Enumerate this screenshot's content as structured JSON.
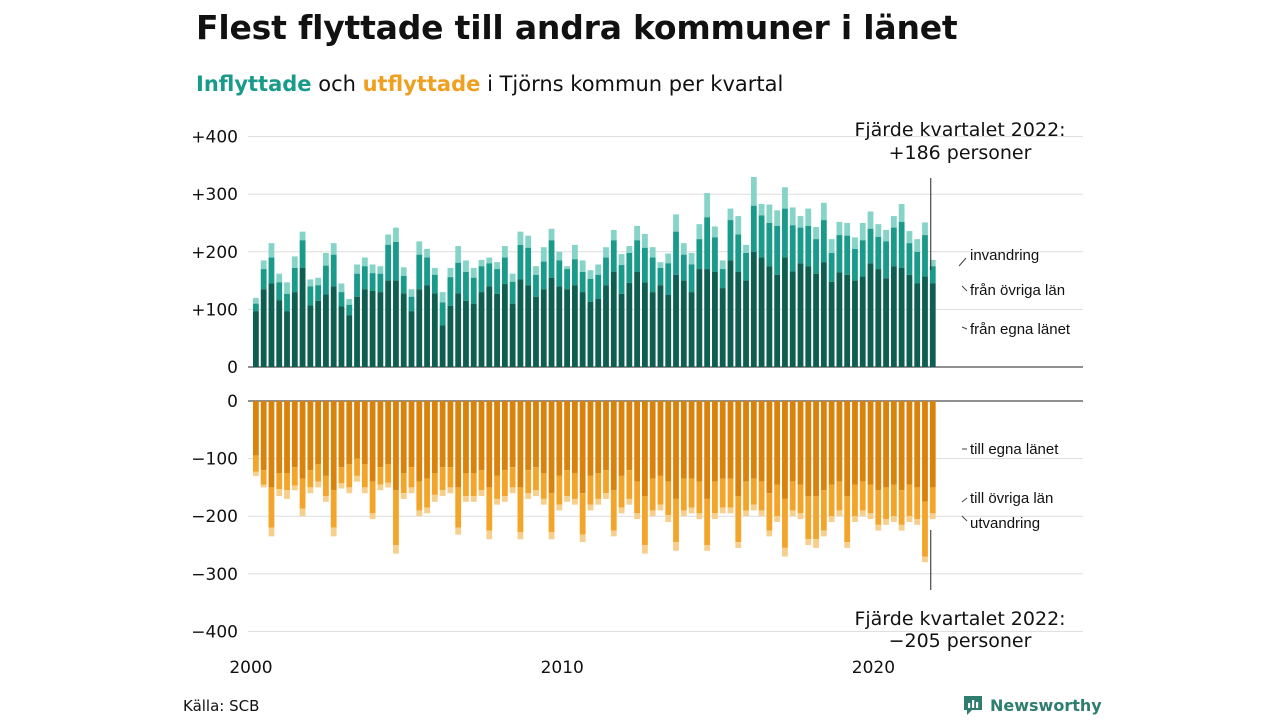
{
  "title": "Flest flyttade till andra kommuner i länet",
  "subtitle": {
    "in_word": "Inflyttade",
    "and_word": " och ",
    "out_word": "utflyttade",
    "rest": " i Tjörns kommun per kvartal"
  },
  "colors": {
    "in_egna": "#0f5e52",
    "in_ovriga": "#1a9a8a",
    "in_invandring": "#86d3c8",
    "out_egna": "#d9830c",
    "out_ovriga": "#f2a52a",
    "out_utvandring": "#f7cf8c",
    "grid": "#dddddd"
  },
  "source": "Källa: SCB",
  "brand": "Newsworthy",
  "chart_data": {
    "type": "bar",
    "stacked": true,
    "x_start": "2000 Q1",
    "x_end": "2022 Q4",
    "x_ticks": [
      "2000",
      "2010",
      "2020"
    ],
    "top_panel": {
      "yticks": [
        "+400",
        "+300",
        "+200",
        "+100",
        "0"
      ],
      "ylim": [
        0,
        400
      ],
      "series_names": [
        "från egna länet",
        "från övriga län",
        "invandring"
      ],
      "annotation": [
        "Fjärde kvartalet 2022:",
        "+186 personer"
      ],
      "last_total": 186
    },
    "bottom_panel": {
      "yticks": [
        "0",
        "−100",
        "−200",
        "−300",
        "−400"
      ],
      "ylim": [
        -400,
        0
      ],
      "series_names": [
        "till egna länet",
        "till övriga län",
        "utvandring"
      ],
      "annotation": [
        "Fjärde kvartalet 2022:",
        "−205 personer"
      ],
      "last_total": -205
    },
    "inflow_total": [
      120,
      185,
      215,
      162,
      147,
      192,
      235,
      152,
      155,
      198,
      215,
      145,
      118,
      178,
      190,
      178,
      175,
      230,
      242,
      173,
      135,
      218,
      205,
      172,
      130,
      172,
      210,
      185,
      172,
      186,
      190,
      182,
      210,
      162,
      235,
      228,
      175,
      208,
      240,
      200,
      175,
      212,
      185,
      168,
      178,
      208,
      238,
      196,
      210,
      245,
      231,
      208,
      182,
      197,
      265,
      215,
      198,
      248,
      302,
      244,
      185,
      275,
      262,
      212,
      330,
      283,
      282,
      272,
      312,
      277,
      262,
      275,
      243,
      285,
      222,
      252,
      250,
      225,
      250,
      270,
      248,
      238,
      262,
      283,
      236,
      222,
      251,
      186
    ],
    "inflow_egna": [
      97,
      135,
      145,
      116,
      97,
      130,
      172,
      107,
      115,
      126,
      140,
      105,
      90,
      122,
      135,
      132,
      130,
      150,
      150,
      128,
      97,
      135,
      142,
      128,
      72,
      106,
      128,
      115,
      110,
      130,
      140,
      127,
      144,
      110,
      152,
      142,
      122,
      135,
      155,
      140,
      135,
      142,
      130,
      113,
      118,
      142,
      165,
      127,
      146,
      165,
      147,
      130,
      142,
      125,
      160,
      150,
      130,
      170,
      170,
      165,
      137,
      185,
      165,
      150,
      200,
      190,
      175,
      160,
      190,
      166,
      180,
      175,
      162,
      182,
      148,
      164,
      160,
      150,
      157,
      180,
      170,
      154,
      175,
      172,
      160,
      145,
      157,
      145
    ],
    "inflow_ovriga": [
      13,
      35,
      45,
      31,
      30,
      42,
      48,
      33,
      27,
      50,
      55,
      25,
      18,
      40,
      40,
      31,
      32,
      62,
      67,
      30,
      25,
      60,
      48,
      32,
      40,
      50,
      53,
      50,
      45,
      45,
      40,
      43,
      46,
      38,
      60,
      65,
      38,
      48,
      65,
      45,
      35,
      45,
      35,
      40,
      42,
      48,
      55,
      50,
      52,
      55,
      60,
      60,
      30,
      55,
      75,
      45,
      48,
      52,
      90,
      60,
      33,
      70,
      65,
      48,
      80,
      73,
      75,
      85,
      85,
      80,
      62,
      70,
      60,
      73,
      50,
      65,
      68,
      55,
      63,
      60,
      56,
      64,
      67,
      80,
      55,
      55,
      72,
      30
    ],
    "outflow_total": [
      -130,
      -150,
      -235,
      -165,
      -170,
      -155,
      -200,
      -160,
      -150,
      -175,
      -235,
      -152,
      -160,
      -140,
      -160,
      -205,
      -155,
      -150,
      -265,
      -170,
      -160,
      -200,
      -195,
      -175,
      -165,
      -160,
      -232,
      -175,
      -175,
      -165,
      -240,
      -180,
      -175,
      -160,
      -240,
      -170,
      -165,
      -180,
      -240,
      -190,
      -175,
      -180,
      -245,
      -190,
      -180,
      -170,
      -235,
      -195,
      -180,
      -205,
      -265,
      -200,
      -190,
      -210,
      -260,
      -200,
      -195,
      -205,
      -260,
      -205,
      -195,
      -195,
      -255,
      -200,
      -190,
      -200,
      -235,
      -210,
      -270,
      -200,
      -205,
      -250,
      -255,
      -235,
      -210,
      -200,
      -255,
      -210,
      -200,
      -205,
      -225,
      -215,
      -210,
      -225,
      -210,
      -215,
      -280,
      -205
    ],
    "outflow_egna": [
      -95,
      -120,
      -150,
      -125,
      -125,
      -115,
      -135,
      -120,
      -110,
      -130,
      -155,
      -115,
      -110,
      -100,
      -110,
      -140,
      -115,
      -110,
      -155,
      -125,
      -115,
      -140,
      -135,
      -125,
      -115,
      -115,
      -150,
      -125,
      -125,
      -120,
      -150,
      -130,
      -120,
      -115,
      -150,
      -120,
      -115,
      -125,
      -160,
      -130,
      -120,
      -125,
      -160,
      -130,
      -125,
      -120,
      -155,
      -130,
      -120,
      -140,
      -165,
      -135,
      -130,
      -140,
      -170,
      -135,
      -135,
      -140,
      -170,
      -140,
      -135,
      -135,
      -165,
      -140,
      -135,
      -140,
      -160,
      -145,
      -170,
      -140,
      -145,
      -165,
      -165,
      -155,
      -145,
      -140,
      -165,
      -145,
      -140,
      -145,
      -155,
      -150,
      -145,
      -155,
      -145,
      -150,
      -175,
      -150
    ],
    "outflow_ovriga": [
      -28,
      -25,
      -70,
      -28,
      -30,
      -32,
      -52,
      -30,
      -30,
      -35,
      -65,
      -28,
      -40,
      -30,
      -40,
      -55,
      -30,
      -32,
      -95,
      -35,
      -35,
      -50,
      -50,
      -38,
      -40,
      -35,
      -70,
      -40,
      -40,
      -35,
      -75,
      -40,
      -45,
      -35,
      -78,
      -40,
      -40,
      -45,
      -68,
      -50,
      -45,
      -45,
      -72,
      -50,
      -45,
      -40,
      -70,
      -55,
      -50,
      -55,
      -85,
      -55,
      -50,
      -58,
      -75,
      -55,
      -50,
      -55,
      -80,
      -55,
      -50,
      -50,
      -80,
      -50,
      -45,
      -50,
      -65,
      -55,
      -85,
      -50,
      -50,
      -75,
      -75,
      -70,
      -55,
      -50,
      -80,
      -55,
      -50,
      -50,
      -60,
      -55,
      -55,
      -60,
      -55,
      -55,
      -95,
      -45
    ]
  }
}
